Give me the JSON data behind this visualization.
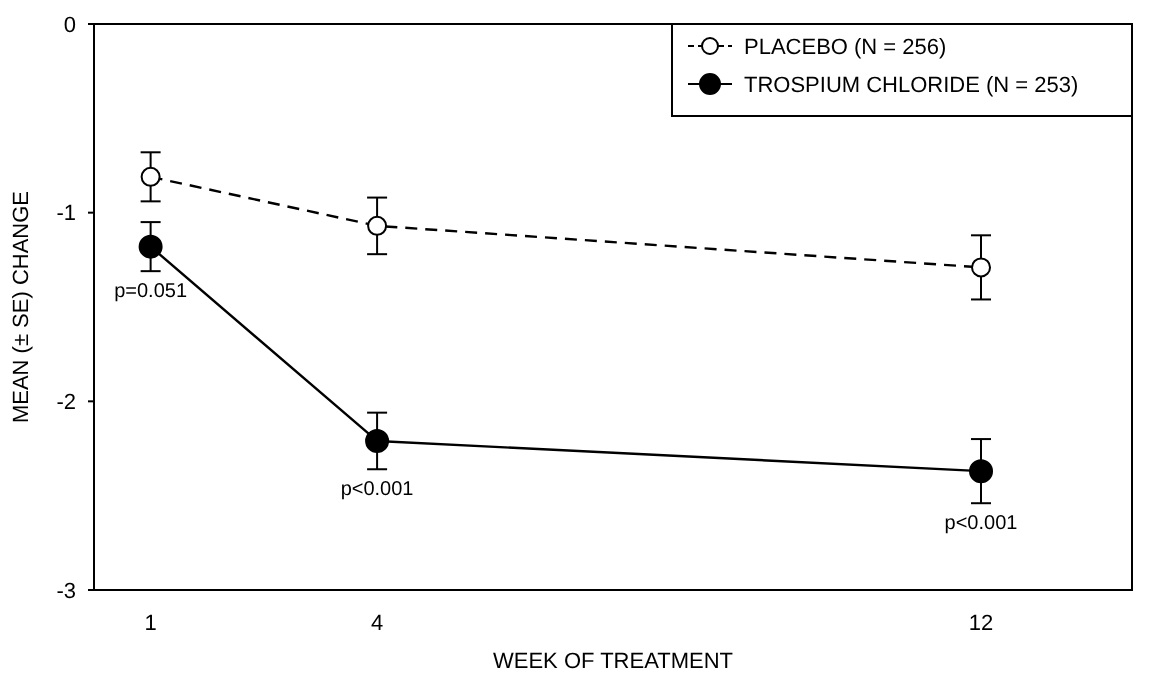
{
  "chart_data": {
    "type": "line",
    "xlabel": "WEEK OF TREATMENT",
    "ylabel": "MEAN (± SE) CHANGE",
    "x": [
      1,
      4,
      12
    ],
    "xlim": [
      0.25,
      14
    ],
    "xticks": [
      1,
      4,
      12
    ],
    "ylim": [
      -3,
      0
    ],
    "yticks": [
      -3,
      -2,
      -1,
      0
    ],
    "grid": false,
    "legend": "top right",
    "series": [
      {
        "name": "PLACEBO (N = 256)",
        "color": "#000000",
        "values": [
          -0.81,
          -1.07,
          -1.29
        ],
        "errors": [
          0.13,
          0.15,
          0.17
        ],
        "line_style": "dashed",
        "marker": "circle"
      },
      {
        "name": "TROSPIUM CHLORIDE (N = 253)",
        "color": "#000000",
        "values": [
          -1.18,
          -2.21,
          -2.37
        ],
        "errors": [
          0.13,
          0.15,
          0.17
        ],
        "line_style": "solid",
        "marker": "circle"
      }
    ],
    "annotations": [
      {
        "text": "p=0.051",
        "x": 1,
        "y": -1.18
      },
      {
        "text": "p<0.001",
        "x": 4,
        "y": -2.21
      },
      {
        "text": "p<0.001",
        "x": 12,
        "y": -2.37
      }
    ]
  }
}
